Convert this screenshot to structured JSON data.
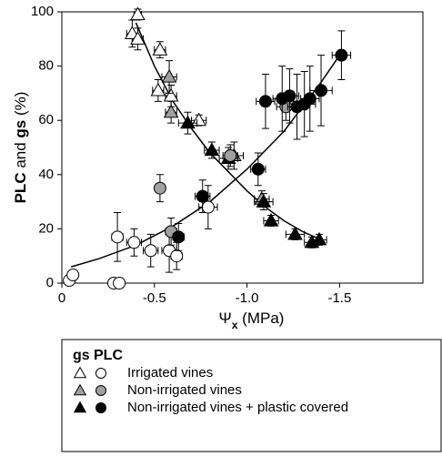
{
  "chart_data": {
    "type": "scatter",
    "x_label": [
      "Ψ",
      "x",
      " (MPa)"
    ],
    "y_label": [
      "PLC",
      " and ",
      "gs",
      " (%)"
    ],
    "xlim": [
      0,
      -1.95
    ],
    "ylim": [
      0,
      100
    ],
    "xticks": [
      0,
      {
        "value": -0.5,
        "label": "-0.5"
      },
      {
        "value": -1.0,
        "label": "-1.0"
      },
      {
        "value": -1.5,
        "label": "-1.5"
      }
    ],
    "yticks": [
      0,
      20,
      40,
      60,
      80,
      100
    ],
    "legend": {
      "columns": [
        "gs",
        "PLC"
      ],
      "rows": [
        "Irrigated vines",
        "Non-irrigated vines",
        "Non-irrigated vines + plastic covered"
      ]
    },
    "series": [
      {
        "marker": "triangle",
        "color": "#ffffff",
        "legend_row": 0,
        "x": [
          -0.38,
          -0.41,
          -0.41,
          -0.53,
          -0.52,
          -0.59,
          -0.74
        ],
        "values": [
          92,
          99,
          90,
          86,
          71,
          69,
          60
        ],
        "y_err": [
          5,
          2,
          4,
          3,
          4,
          4,
          2
        ],
        "x_err": [
          0.03,
          0.02,
          0.03,
          0.03,
          0.03,
          0.03,
          0.04
        ]
      },
      {
        "marker": "triangle",
        "color": "#a0a0a0",
        "legend_row": 1,
        "x": [
          -0.58,
          -0.59,
          -0.93,
          -1.08
        ],
        "values": [
          76,
          63,
          47,
          31
        ],
        "y_err": [
          6,
          4,
          5,
          3
        ],
        "x_err": [
          0.04,
          0.03,
          0.05,
          0.04
        ]
      },
      {
        "marker": "triangle",
        "color": "#000000",
        "legend_row": 2,
        "x": [
          -0.68,
          -0.81,
          -0.9,
          -1.09,
          -1.13,
          -1.26,
          -1.35,
          -1.39
        ],
        "values": [
          59,
          49,
          46,
          30,
          23,
          18,
          15,
          16
        ],
        "y_err": [
          4,
          3,
          4,
          3,
          2,
          2,
          2,
          2
        ],
        "x_err": [
          0.05,
          0.04,
          0.05,
          0.05,
          0.04,
          0.05,
          0.04,
          0.04
        ]
      },
      {
        "marker": "circle",
        "color": "#ffffff",
        "legend_row": 0,
        "x": [
          -0.04,
          -0.06,
          -0.28,
          -0.31,
          -0.3,
          -0.39,
          -0.48,
          -0.58,
          -0.62,
          -0.79
        ],
        "values": [
          1,
          3,
          0,
          0,
          17,
          15,
          12,
          12,
          10,
          28
        ],
        "y_err": [
          1,
          1,
          0,
          0,
          9,
          5,
          6,
          8,
          5,
          8
        ],
        "x_err": [
          0.01,
          0.02,
          0.01,
          0.01,
          0.03,
          0.04,
          0.04,
          0.04,
          0.03,
          0.05
        ]
      },
      {
        "marker": "circle",
        "color": "#a0a0a0",
        "legend_row": 1,
        "x": [
          -0.53,
          -0.59,
          -0.91,
          -1.21
        ],
        "values": [
          35,
          19,
          47,
          65
        ],
        "y_err": [
          5,
          5,
          4,
          5
        ],
        "x_err": [
          0.02,
          0.03,
          0.04,
          0.05
        ]
      },
      {
        "marker": "circle",
        "color": "#000000",
        "legend_row": 2,
        "x": [
          -0.63,
          -0.76,
          -1.06,
          -1.1,
          -1.19,
          -1.23,
          -1.27,
          -1.31,
          -1.34,
          -1.4,
          -1.51
        ],
        "values": [
          17,
          32,
          42,
          67,
          68,
          69,
          65,
          66,
          68,
          71,
          84
        ],
        "y_err": [
          5,
          6,
          6,
          10,
          12,
          10,
          12,
          12,
          12,
          13,
          9
        ],
        "x_err": [
          0.03,
          0.04,
          0.04,
          0.05,
          0.05,
          0.05,
          0.05,
          0.06,
          0.05,
          0.06,
          0.05
        ]
      }
    ],
    "fits": [
      {
        "x": [
          -0.4,
          -0.5,
          -0.6,
          -0.7,
          -0.8,
          -0.9,
          -1.0,
          -1.1,
          -1.2,
          -1.3,
          -1.4
        ],
        "values": [
          96,
          80,
          67,
          57,
          48,
          41,
          34,
          28,
          23,
          19,
          16
        ]
      },
      {
        "x": [
          -0.05,
          -0.2,
          -0.4,
          -0.6,
          -0.8,
          -1.0,
          -1.2,
          -1.4,
          -1.5
        ],
        "values": [
          6,
          9,
          14,
          21,
          30,
          42,
          56,
          74,
          84
        ]
      }
    ]
  }
}
